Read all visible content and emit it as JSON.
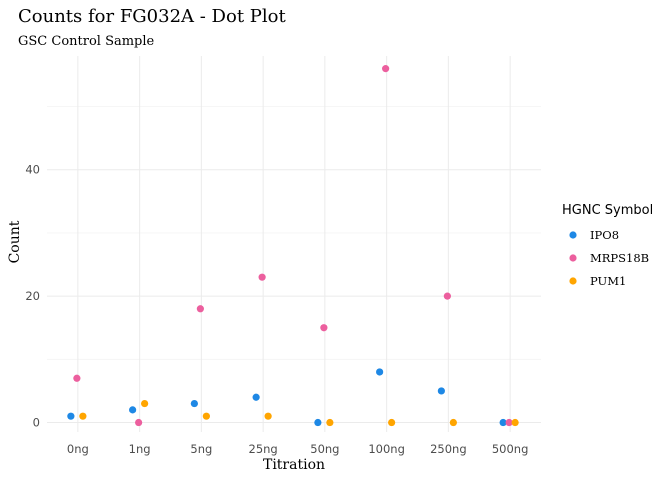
{
  "chart_data": {
    "type": "scatter",
    "title": "Counts for FG032A - Dot Plot",
    "subtitle": "GSC Control Sample",
    "xlabel": "Titration",
    "ylabel": "Count",
    "categories": [
      "0ng",
      "1ng",
      "5ng",
      "25ng",
      "50ng",
      "100ng",
      "250ng",
      "500ng"
    ],
    "yticks": [
      0,
      20,
      40
    ],
    "ylim": [
      -1.5,
      58
    ],
    "grid": true,
    "legend": {
      "title": "HGNC Symbol",
      "position": "right"
    },
    "series": [
      {
        "name": "IPO8",
        "color": "#1E88E5",
        "values": [
          1,
          2,
          3,
          4,
          0,
          8,
          5,
          0
        ]
      },
      {
        "name": "MRPS18B",
        "color": "#EC5F9E",
        "values": [
          7,
          0,
          18,
          23,
          15,
          56,
          20,
          0
        ]
      },
      {
        "name": "PUM1",
        "color": "#FFA500",
        "values": [
          1,
          3,
          1,
          1,
          0,
          0,
          0,
          0
        ]
      }
    ]
  }
}
